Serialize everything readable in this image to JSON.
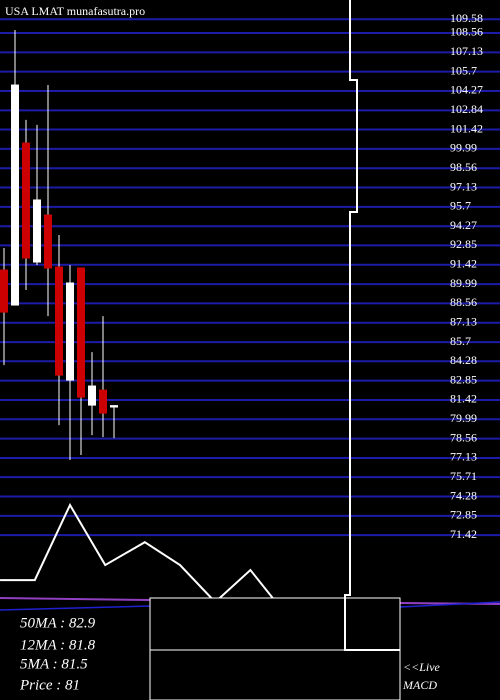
{
  "chart_data": {
    "type": "candlestick",
    "title": "USA LMAT munafasutra.pro",
    "candles": [
      {
        "open": 91.03,
        "high": 92.66,
        "low": 84.0,
        "close": 87.92,
        "color": "#cc0000"
      },
      {
        "open": 88.44,
        "high": 108.78,
        "low": 88.44,
        "close": 104.71,
        "color": "#ffffff"
      },
      {
        "open": 100.42,
        "high": 102.13,
        "low": 89.55,
        "close": 91.92,
        "color": "#cc0000"
      },
      {
        "open": 91.62,
        "high": 101.76,
        "low": 91.4,
        "close": 96.21,
        "color": "#ffffff"
      },
      {
        "open": 95.1,
        "high": 104.71,
        "low": 87.62,
        "close": 91.18,
        "color": "#cc0000"
      },
      {
        "open": 91.25,
        "high": 93.62,
        "low": 79.56,
        "close": 83.26,
        "color": "#cc0000"
      },
      {
        "open": 82.89,
        "high": 91.4,
        "low": 76.98,
        "close": 90.07,
        "color": "#ffffff"
      },
      {
        "open": 91.18,
        "high": 91.18,
        "low": 77.35,
        "close": 81.63,
        "color": "#cc0000"
      },
      {
        "open": 81.04,
        "high": 84.96,
        "low": 78.82,
        "close": 82.45,
        "color": "#ffffff"
      },
      {
        "open": 82.15,
        "high": 87.62,
        "low": 78.67,
        "close": 80.45,
        "color": "#cc0000"
      },
      {
        "open": 80.9,
        "high": 81.04,
        "low": 78.6,
        "close": 81.0,
        "color": "#ffffff"
      }
    ],
    "line": {
      "color": "#ffffff",
      "x": [
        -0.36,
        2.8,
        6,
        9.2,
        12.8,
        16,
        19.2,
        22.4,
        24.6
      ],
      "values": [
        68.1,
        68.1,
        73.65,
        69.21,
        70.9,
        69.21,
        66.47,
        68.84,
        66.6
      ]
    },
    "ylim": [
      59.23,
      111.0
    ],
    "yticks": [
      109.58,
      108.56,
      107.13,
      105.7,
      104.27,
      102.84,
      101.42,
      99.99,
      98.56,
      97.13,
      95.7,
      94.27,
      92.85,
      91.42,
      89.99,
      88.56,
      87.13,
      85.7,
      84.28,
      82.85,
      81.42,
      79.99,
      78.56,
      77.13,
      75.71,
      74.28,
      72.85,
      71.42
    ],
    "grid": true,
    "grid_color": "#1c1ca8",
    "info": [
      "50MA : 82.9",
      "12MA : 81.8",
      "5MA : 81.5",
      "Price   : 81"
    ],
    "notes": [
      "<<Live",
      "MACD"
    ]
  }
}
